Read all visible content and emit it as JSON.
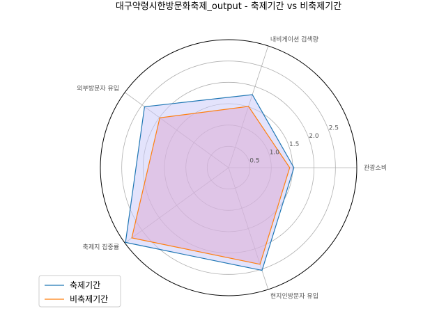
{
  "chart_data": {
    "type": "radar",
    "title": "대구약령시한방문화축제_output - 축제기간 vs 비축제기간",
    "axes": [
      "관광소비",
      "내비게이션 검색량",
      "외부방문자 유입",
      "축제지 집중률",
      "현지인방문자 유입"
    ],
    "rticks": [
      "0.5",
      "1.0",
      "1.5",
      "2.0",
      "2.5"
    ],
    "rticks_values": [
      0.5,
      1.0,
      1.5,
      2.0,
      2.5
    ],
    "rmax": 3.0,
    "series": [
      {
        "name": "축제기간",
        "color": "#1f77b4",
        "fill": "#c8c8fa",
        "values": [
          1.53,
          1.8,
          2.43,
          2.98,
          2.53
        ]
      },
      {
        "name": "비축제기간",
        "color": "#ff7f0e",
        "fill": "#dba8d2",
        "values": [
          1.43,
          1.51,
          1.99,
          2.8,
          2.38
        ]
      }
    ],
    "legend_position": "lower-left",
    "grid": true
  }
}
